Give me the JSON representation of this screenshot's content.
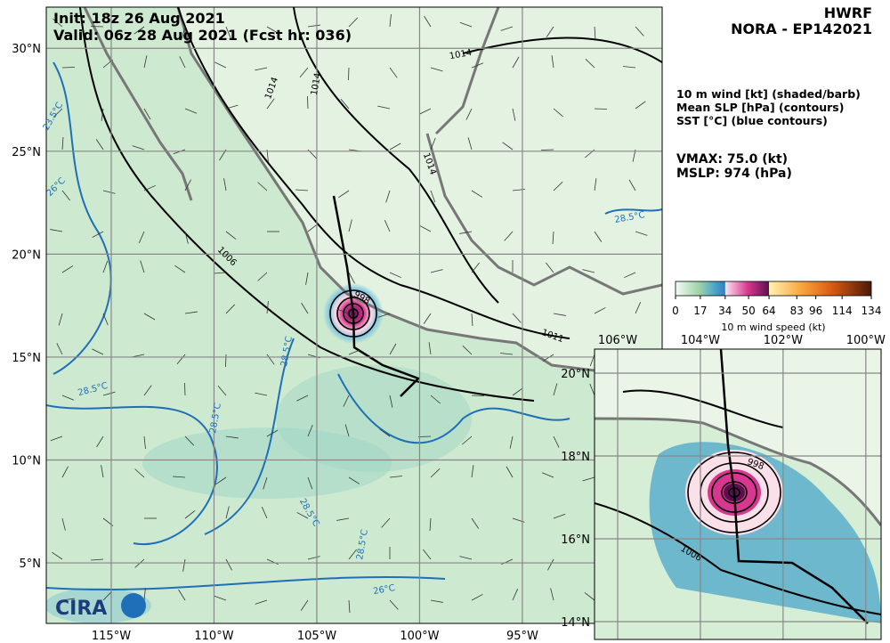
{
  "header": {
    "init": "Init:  18z 26 Aug 2021",
    "valid": "Valid: 06z 28 Aug 2021 (Fcst hr: 036)",
    "model": "HWRF",
    "storm": "NORA - EP142021"
  },
  "legend": [
    "10 m wind [kt] (shaded/barb)",
    "Mean SLP [hPa] (contours)",
    "SST [°C] (blue contours)"
  ],
  "stats": {
    "vmax": "VMAX:  75.0 (kt)",
    "mslp": "MSLP:  974 (hPa)"
  },
  "colorbar": {
    "label": "10 m wind speed (kt)",
    "range": [
      0,
      134
    ],
    "ticks": [
      0,
      17,
      34,
      50,
      64,
      83,
      96,
      114,
      134
    ]
  },
  "main_map": {
    "lonlim": [
      118.16,
      88.2
    ],
    "latlim": [
      2.06,
      32.0
    ],
    "lon_ticks": [
      {
        "value": 115,
        "label": "115°W"
      },
      {
        "value": 110,
        "label": "110°W"
      },
      {
        "value": 105,
        "label": "105°W"
      },
      {
        "value": 100,
        "label": "100°W"
      },
      {
        "value": 95,
        "label": "95°W"
      }
    ],
    "lat_ticks": [
      {
        "value": 30,
        "label": "30°N"
      },
      {
        "value": 25,
        "label": "25°N"
      },
      {
        "value": 20,
        "label": "20°N"
      },
      {
        "value": 15,
        "label": "15°N"
      },
      {
        "value": 10,
        "label": "10°N"
      },
      {
        "value": 5,
        "label": "5°N"
      }
    ],
    "contour_labels": [
      "1014",
      "1014",
      "1014",
      "1014",
      "1006",
      "998",
      "1011",
      "23.5°C",
      "26°C",
      "28.5°C",
      "28.5°C",
      "28.5°C",
      "28.5°C",
      "28.5°C",
      "28.5°C",
      "26°C"
    ]
  },
  "inset_map": {
    "lonlim": [
      106.56,
      99.63
    ],
    "latlim": [
      13.57,
      20.58
    ],
    "lon_ticks": [
      {
        "value": 106,
        "label": "106°W"
      },
      {
        "value": 104,
        "label": "104°W"
      },
      {
        "value": 102,
        "label": "102°W"
      },
      {
        "value": 100,
        "label": "100°W"
      }
    ],
    "lat_ticks": [
      {
        "value": 20,
        "label": "20°N"
      },
      {
        "value": 18,
        "label": "18°N"
      },
      {
        "value": 16,
        "label": "16°N"
      },
      {
        "value": 14,
        "label": "14°N"
      }
    ],
    "contour_labels": [
      "1006",
      "998"
    ]
  },
  "logo": "CIRA"
}
